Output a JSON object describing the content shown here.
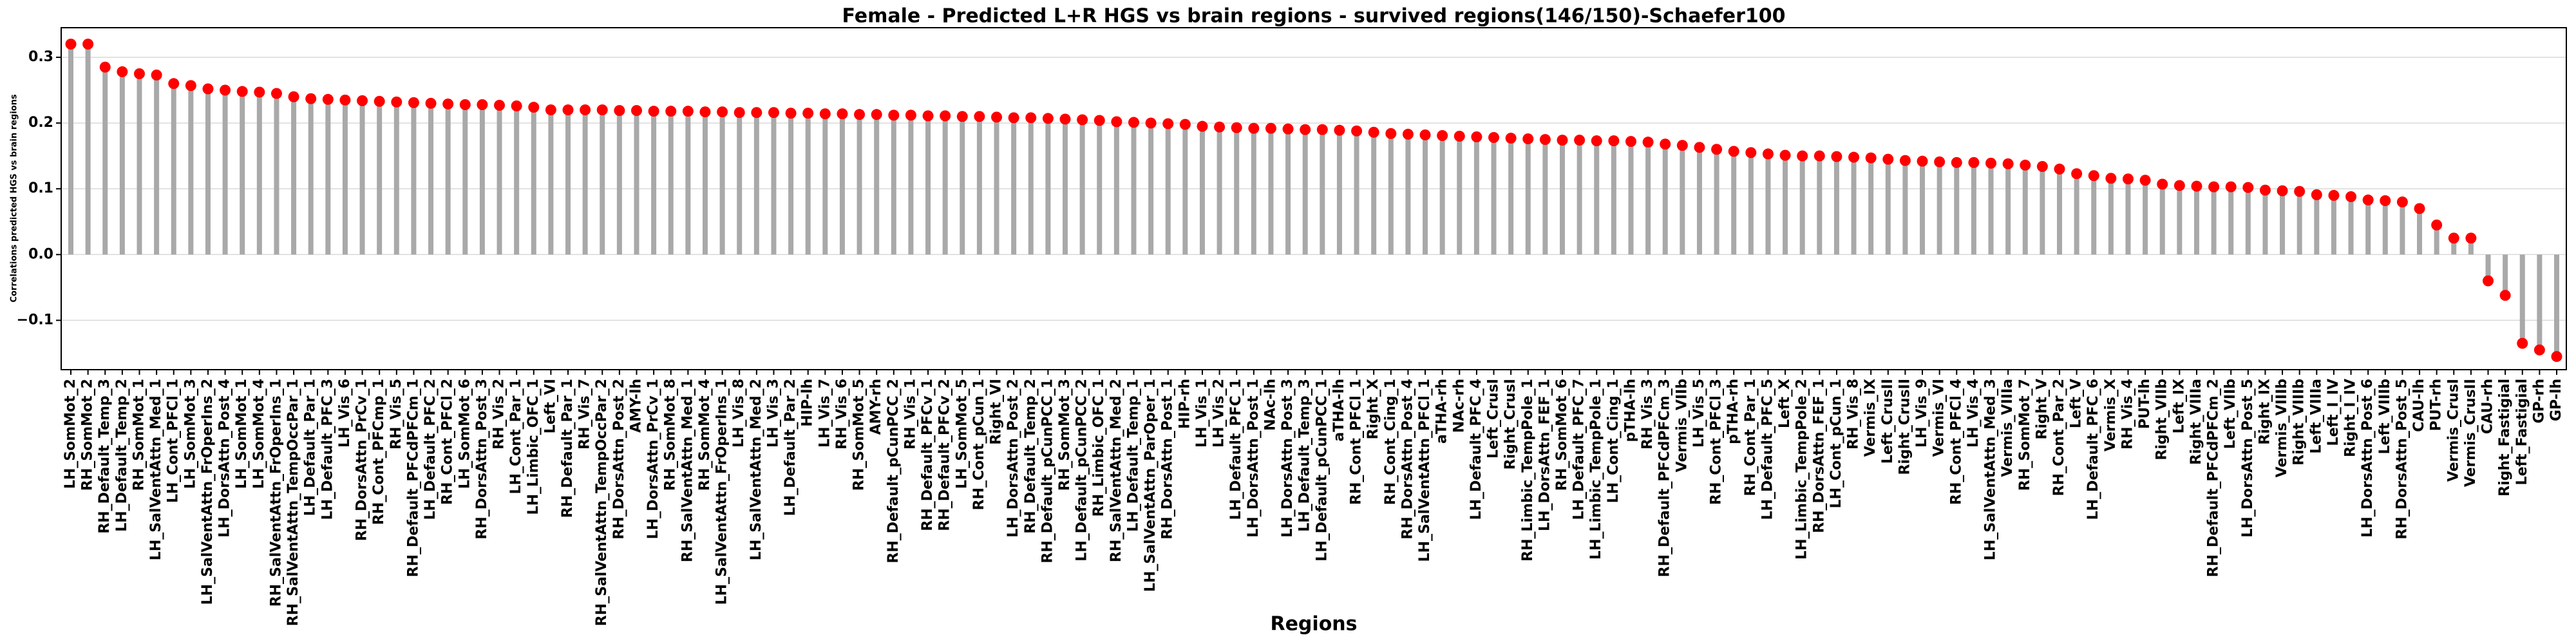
{
  "chart_data": {
    "type": "lollipop",
    "title": "Female - Predicted L+R HGS vs brain regions - survived regions(146/150)-Schaefer100",
    "xlabel": "Regions",
    "ylabel": "Correlations predicted HGS vs brain regions",
    "color": "#ff0000",
    "stem_color": "#a9a9a9",
    "grid": true,
    "ylim": [
      -0.175,
      0.345
    ],
    "yticks": [
      {
        "value": -0.1,
        "label": "−0.1"
      },
      {
        "value": 0,
        "label": "0.0"
      },
      0.1,
      0.2,
      0.3
    ],
    "categories": [
      "LH_SomMot_2",
      "RH_SomMot_2",
      "RH_Default_Temp_3",
      "LH_Default_Temp_2",
      "RH_SomMot_1",
      "LH_SalVentAttn_Med_1",
      "LH_Cont_PFCl_1",
      "LH_SomMot_3",
      "LH_SalVentAttn_FrOperIns_2",
      "LH_DorsAttn_Post_4",
      "LH_SomMot_1",
      "LH_SomMot_4",
      "RH_SalVentAttn_FrOperIns_1",
      "RH_SalVentAttn_TempOccPar_1",
      "LH_Default_Par_1",
      "LH_Default_PFC_3",
      "LH_Vis_6",
      "RH_DorsAttn_PrCv_1",
      "RH_Cont_PFCmp_1",
      "RH_Vis_5",
      "RH_Default_PFCdPFCm_1",
      "LH_Default_PFC_2",
      "RH_Cont_PFCl_2",
      "LH_SomMot_6",
      "RH_DorsAttn_Post_3",
      "RH_Vis_2",
      "LH_Cont_Par_1",
      "LH_Limbic_OFC_1",
      "Left_VI",
      "RH_Default_Par_1",
      "RH_Vis_7",
      "RH_SalVentAttn_TempOccPar_2",
      "RH_DorsAttn_Post_2",
      "AMY-lh",
      "LH_DorsAttn_PrCv_1",
      "RH_SomMot_8",
      "RH_SalVentAttn_Med_1",
      "RH_SomMot_4",
      "LH_SalVentAttn_FrOperIns_1",
      "LH_Vis_8",
      "LH_SalVentAttn_Med_2",
      "LH_Vis_3",
      "LH_Default_Par_2",
      "HIP-lh",
      "LH_Vis_7",
      "RH_Vis_6",
      "RH_SomMot_5",
      "AMY-rh",
      "RH_Default_pCunPCC_2",
      "RH_Vis_1",
      "RH_Default_PFCv_1",
      "RH_Default_PFCv_2",
      "LH_SomMot_5",
      "RH_Cont_pCun_1",
      "Right_VI",
      "LH_DorsAttn_Post_2",
      "RH_Default_Temp_2",
      "RH_Default_pCunPCC_1",
      "RH_SomMot_3",
      "LH_Default_pCunPCC_2",
      "RH_Limbic_OFC_1",
      "RH_SalVentAttn_Med_2",
      "LH_Default_Temp_1",
      "LH_SalVentAttn_ParOper_1",
      "RH_DorsAttn_Post_1",
      "HIP-rh",
      "LH_Vis_1",
      "LH_Vis_2",
      "LH_Default_PFC_1",
      "LH_DorsAttn_Post_1",
      "NAc-lh",
      "LH_DorsAttn_Post_3",
      "LH_Default_Temp_3",
      "LH_Default_pCunPCC_1",
      "aTHA-lh",
      "RH_Cont_PFCl_1",
      "Right_X",
      "RH_Cont_Cing_1",
      "RH_DorsAttn_Post_4",
      "LH_SalVentAttn_PFCl_1",
      "aTHA-rh",
      "NAc-rh",
      "LH_Default_PFC_4",
      "Left_CrusI",
      "Right_CrusI",
      "RH_Limbic_TempPole_1",
      "LH_DorsAttn_FEF_1",
      "RH_SomMot_6",
      "LH_Default_PFC_7",
      "LH_Limbic_TempPole_1",
      "LH_Cont_Cing_1",
      "pTHA-lh",
      "RH_Vis_3",
      "RH_Default_PFCdPFCm_3",
      "Vermis_VIIb",
      "LH_Vis_5",
      "RH_Cont_PFCl_3",
      "pTHA-rh",
      "RH_Cont_Par_1",
      "LH_Default_PFC_5",
      "Left_X",
      "LH_Limbic_TempPole_2",
      "RH_DorsAttn_FEF_1",
      "LH_Cont_pCun_1",
      "RH_Vis_8",
      "Vermis_IX",
      "Left_CrusII",
      "Right_CrusII",
      "LH_Vis_9",
      "Vermis_VI",
      "RH_Cont_PFCl_4",
      "LH_Vis_4",
      "LH_SalVentAttn_Med_3",
      "Vermis_VIIIa",
      "RH_SomMot_7",
      "Right_V",
      "RH_Cont_Par_2",
      "Left_V",
      "LH_Default_PFC_6",
      "Vermis_X",
      "RH_Vis_4",
      "PUT-lh",
      "Right_VIIb",
      "Left_IX",
      "Right_VIIIa",
      "RH_Default_PFCdPFCm_2",
      "Left_VIIb",
      "LH_DorsAttn_Post_5",
      "Right_IX",
      "Vermis_VIIIb",
      "Right_VIIIb",
      "Left_VIIIa",
      "Left_I_IV",
      "Right_I_IV",
      "LH_DorsAttn_Post_6",
      "Left_VIIIb",
      "RH_DorsAttn_Post_5",
      "CAU-lh",
      "PUT-rh",
      "Vermis_CrusI",
      "Vermis_CrusII",
      "CAU-rh",
      "Right_Fastigial",
      "Left_Fastigial",
      "GP-rh",
      "GP-lh"
    ],
    "values": [
      0.32,
      0.32,
      0.285,
      0.278,
      0.275,
      0.273,
      0.26,
      0.257,
      0.252,
      0.25,
      0.248,
      0.247,
      0.245,
      0.24,
      0.237,
      0.236,
      0.235,
      0.234,
      0.233,
      0.232,
      0.231,
      0.23,
      0.229,
      0.228,
      0.228,
      0.227,
      0.226,
      0.224,
      0.22,
      0.22,
      0.22,
      0.22,
      0.219,
      0.219,
      0.218,
      0.218,
      0.218,
      0.217,
      0.217,
      0.216,
      0.216,
      0.216,
      0.215,
      0.215,
      0.214,
      0.214,
      0.213,
      0.213,
      0.212,
      0.212,
      0.211,
      0.211,
      0.21,
      0.21,
      0.209,
      0.208,
      0.208,
      0.207,
      0.206,
      0.205,
      0.204,
      0.202,
      0.201,
      0.2,
      0.199,
      0.198,
      0.195,
      0.194,
      0.193,
      0.192,
      0.192,
      0.191,
      0.19,
      0.19,
      0.189,
      0.188,
      0.186,
      0.184,
      0.183,
      0.182,
      0.181,
      0.18,
      0.179,
      0.178,
      0.177,
      0.176,
      0.175,
      0.174,
      0.174,
      0.173,
      0.173,
      0.172,
      0.171,
      0.168,
      0.166,
      0.163,
      0.16,
      0.157,
      0.155,
      0.153,
      0.151,
      0.15,
      0.15,
      0.149,
      0.148,
      0.147,
      0.145,
      0.143,
      0.142,
      0.141,
      0.14,
      0.14,
      0.139,
      0.138,
      0.136,
      0.134,
      0.13,
      0.123,
      0.12,
      0.116,
      0.115,
      0.113,
      0.107,
      0.105,
      0.104,
      0.103,
      0.103,
      0.102,
      0.098,
      0.097,
      0.096,
      0.091,
      0.09,
      0.088,
      0.083,
      0.082,
      0.08,
      0.07,
      0.045,
      0.025,
      0.025,
      -0.04,
      -0.062,
      -0.135,
      -0.145,
      -0.155
    ]
  }
}
